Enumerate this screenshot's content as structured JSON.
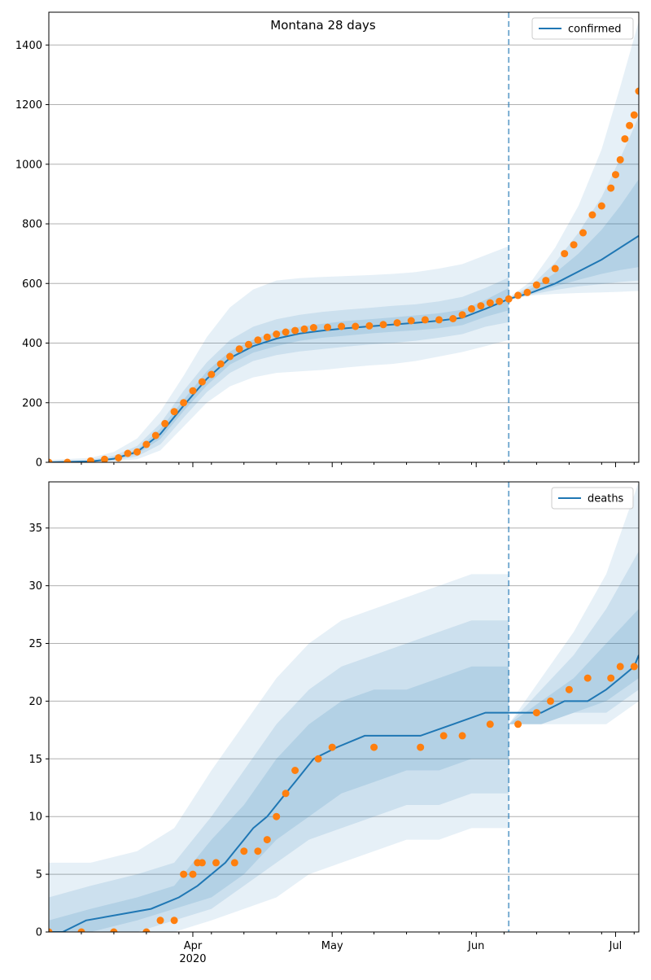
{
  "chart_data": [
    {
      "type": "line",
      "panel": "confirmed",
      "title": "Montana 28 days",
      "xlabel": "",
      "ylabel": "",
      "xlim": [
        "2020-03-01",
        "2020-07-06"
      ],
      "ylim": [
        0,
        1510
      ],
      "yticks": [
        0,
        200,
        400,
        600,
        800,
        1000,
        1200,
        1400
      ],
      "xticks": [
        {
          "date": "2020-04-01",
          "label": "Apr",
          "sublabel": "2020"
        },
        {
          "date": "2020-05-01",
          "label": "May",
          "sublabel": ""
        },
        {
          "date": "2020-06-01",
          "label": "Jun",
          "sublabel": ""
        },
        {
          "date": "2020-07-01",
          "label": "Jul",
          "sublabel": ""
        }
      ],
      "grid": "y",
      "legend_position": "top-right",
      "legend": [
        "confirmed"
      ],
      "forecast_start": "2020-06-08",
      "colors": {
        "line": "#1f77b4",
        "points": "#ff7f0e",
        "band": "#1f77b4",
        "vline": "#1f77b4"
      },
      "fit_series": {
        "name": "confirmed",
        "x": [
          "2020-03-01",
          "2020-03-10",
          "2020-03-15",
          "2020-03-20",
          "2020-03-25",
          "2020-03-30",
          "2020-04-04",
          "2020-04-09",
          "2020-04-14",
          "2020-04-19",
          "2020-04-24",
          "2020-04-29",
          "2020-05-04",
          "2020-05-09",
          "2020-05-14",
          "2020-05-19",
          "2020-05-24",
          "2020-05-29",
          "2020-06-03",
          "2020-06-08",
          "2020-06-13",
          "2020-06-18",
          "2020-06-23",
          "2020-06-28",
          "2020-07-02",
          "2020-07-06"
        ],
        "y": [
          0,
          3,
          12,
          35,
          95,
          190,
          280,
          350,
          390,
          415,
          432,
          442,
          450,
          456,
          462,
          468,
          475,
          485,
          515,
          548,
          570,
          600,
          640,
          680,
          720,
          760
        ]
      },
      "bands": [
        {
          "level": "outer",
          "x": [
            "2020-03-01",
            "2020-03-10",
            "2020-03-15",
            "2020-03-20",
            "2020-03-25",
            "2020-03-30",
            "2020-04-04",
            "2020-04-09",
            "2020-04-14",
            "2020-04-19",
            "2020-04-24",
            "2020-04-29",
            "2020-05-04",
            "2020-05-09",
            "2020-05-14",
            "2020-05-19",
            "2020-05-24",
            "2020-05-29",
            "2020-06-03",
            "2020-06-08"
          ],
          "low": [
            0,
            0,
            3,
            10,
            40,
            120,
            200,
            255,
            285,
            300,
            305,
            310,
            318,
            325,
            330,
            340,
            355,
            370,
            390,
            410
          ],
          "high": [
            8,
            15,
            35,
            80,
            170,
            290,
            420,
            520,
            580,
            610,
            618,
            622,
            625,
            628,
            632,
            638,
            650,
            665,
            695,
            725
          ]
        },
        {
          "level": "middle",
          "x": [
            "2020-03-01",
            "2020-03-10",
            "2020-03-15",
            "2020-03-20",
            "2020-03-25",
            "2020-03-30",
            "2020-04-04",
            "2020-04-09",
            "2020-04-14",
            "2020-04-19",
            "2020-04-24",
            "2020-04-29",
            "2020-05-04",
            "2020-05-09",
            "2020-05-14",
            "2020-05-19",
            "2020-05-24",
            "2020-05-29",
            "2020-06-03",
            "2020-06-08"
          ],
          "low": [
            0,
            1,
            6,
            20,
            60,
            150,
            235,
            300,
            340,
            360,
            372,
            380,
            388,
            395,
            400,
            408,
            418,
            430,
            455,
            470
          ],
          "high": [
            5,
            9,
            22,
            55,
            130,
            240,
            335,
            410,
            455,
            480,
            495,
            505,
            512,
            518,
            525,
            530,
            540,
            555,
            585,
            620
          ]
        },
        {
          "level": "inner",
          "x": [
            "2020-03-01",
            "2020-03-10",
            "2020-03-15",
            "2020-03-20",
            "2020-03-25",
            "2020-03-30",
            "2020-04-04",
            "2020-04-09",
            "2020-04-14",
            "2020-04-19",
            "2020-04-24",
            "2020-04-29",
            "2020-05-04",
            "2020-05-09",
            "2020-05-14",
            "2020-05-19",
            "2020-05-24",
            "2020-05-29",
            "2020-06-03",
            "2020-06-08"
          ],
          "low": [
            0,
            2,
            9,
            28,
            78,
            172,
            258,
            328,
            368,
            390,
            408,
            418,
            425,
            432,
            438,
            443,
            450,
            460,
            488,
            510
          ],
          "high": [
            2,
            5,
            16,
            42,
            112,
            210,
            305,
            372,
            412,
            438,
            455,
            465,
            474,
            480,
            486,
            493,
            500,
            512,
            545,
            585
          ]
        },
        {
          "level": "outer",
          "x": [
            "2020-06-08",
            "2020-06-13",
            "2020-06-18",
            "2020-06-23",
            "2020-06-28",
            "2020-07-02",
            "2020-07-06"
          ],
          "low": [
            545,
            560,
            565,
            568,
            570,
            572,
            575
          ],
          "high": [
            552,
            610,
            720,
            860,
            1050,
            1260,
            1480
          ]
        },
        {
          "level": "middle",
          "x": [
            "2020-06-08",
            "2020-06-13",
            "2020-06-18",
            "2020-06-23",
            "2020-06-28",
            "2020-07-02",
            "2020-07-06"
          ],
          "low": [
            546,
            563,
            578,
            590,
            598,
            605,
            610
          ],
          "high": [
            551,
            595,
            670,
            770,
            890,
            1020,
            1160
          ]
        },
        {
          "level": "inner",
          "x": [
            "2020-06-08",
            "2020-06-13",
            "2020-06-18",
            "2020-06-23",
            "2020-06-28",
            "2020-07-02",
            "2020-07-06"
          ],
          "low": [
            547,
            567,
            590,
            612,
            632,
            645,
            655
          ],
          "high": [
            550,
            585,
            635,
            700,
            780,
            860,
            950
          ]
        }
      ],
      "points": {
        "name": "observed",
        "x": [
          "2020-03-01",
          "2020-03-05",
          "2020-03-10",
          "2020-03-13",
          "2020-03-16",
          "2020-03-18",
          "2020-03-20",
          "2020-03-22",
          "2020-03-24",
          "2020-03-26",
          "2020-03-28",
          "2020-03-30",
          "2020-04-01",
          "2020-04-03",
          "2020-04-05",
          "2020-04-07",
          "2020-04-09",
          "2020-04-11",
          "2020-04-13",
          "2020-04-15",
          "2020-04-17",
          "2020-04-19",
          "2020-04-21",
          "2020-04-23",
          "2020-04-25",
          "2020-04-27",
          "2020-04-30",
          "2020-05-03",
          "2020-05-06",
          "2020-05-09",
          "2020-05-12",
          "2020-05-15",
          "2020-05-18",
          "2020-05-21",
          "2020-05-24",
          "2020-05-27",
          "2020-05-29",
          "2020-05-31",
          "2020-06-02",
          "2020-06-04",
          "2020-06-06",
          "2020-06-08",
          "2020-06-10",
          "2020-06-12",
          "2020-06-14",
          "2020-06-16",
          "2020-06-18",
          "2020-06-20",
          "2020-06-22",
          "2020-06-24",
          "2020-06-26",
          "2020-06-28",
          "2020-06-30",
          "2020-07-01",
          "2020-07-02",
          "2020-07-03",
          "2020-07-04",
          "2020-07-05",
          "2020-07-06"
        ],
        "y": [
          0,
          0,
          5,
          10,
          15,
          30,
          35,
          60,
          90,
          130,
          170,
          200,
          240,
          270,
          295,
          330,
          355,
          380,
          395,
          410,
          420,
          430,
          437,
          442,
          447,
          452,
          453,
          456,
          456,
          458,
          462,
          468,
          475,
          478,
          478,
          482,
          495,
          515,
          525,
          535,
          540,
          548,
          560,
          570,
          595,
          610,
          650,
          700,
          730,
          770,
          830,
          860,
          920,
          965,
          1015,
          1085,
          1130,
          1165,
          1245
        ]
      }
    },
    {
      "type": "line",
      "panel": "deaths",
      "title": "",
      "xlabel": "",
      "ylabel": "",
      "xlim": [
        "2020-03-01",
        "2020-07-06"
      ],
      "ylim": [
        0,
        39
      ],
      "yticks": [
        0,
        5,
        10,
        15,
        20,
        25,
        30,
        35
      ],
      "xticks": [
        {
          "date": "2020-04-01",
          "label": "Apr",
          "sublabel": "2020"
        },
        {
          "date": "2020-05-01",
          "label": "May",
          "sublabel": ""
        },
        {
          "date": "2020-06-01",
          "label": "Jun",
          "sublabel": ""
        },
        {
          "date": "2020-07-01",
          "label": "Jul",
          "sublabel": ""
        }
      ],
      "grid": "y",
      "legend_position": "top-right",
      "legend": [
        "deaths"
      ],
      "forecast_start": "2020-06-08",
      "colors": {
        "line": "#1f77b4",
        "points": "#ff7f0e",
        "band": "#1f77b4",
        "vline": "#1f77b4"
      },
      "fit_series": {
        "name": "deaths",
        "x": [
          "2020-03-01",
          "2020-03-04",
          "2020-03-09",
          "2020-03-23",
          "2020-03-29",
          "2020-04-02",
          "2020-04-05",
          "2020-04-08",
          "2020-04-10",
          "2020-04-12",
          "2020-04-14",
          "2020-04-17",
          "2020-04-19",
          "2020-04-21",
          "2020-04-23",
          "2020-04-25",
          "2020-04-27",
          "2020-05-02",
          "2020-05-08",
          "2020-05-20",
          "2020-05-27",
          "2020-06-03",
          "2020-06-08",
          "2020-06-15",
          "2020-06-20",
          "2020-06-25",
          "2020-06-29",
          "2020-07-02",
          "2020-07-05",
          "2020-07-06"
        ],
        "y": [
          0,
          0,
          1,
          2,
          3,
          4,
          5,
          6,
          7,
          8,
          9,
          10,
          11,
          12,
          13,
          14,
          15,
          16,
          17,
          17,
          18,
          19,
          19,
          19,
          20,
          20,
          21,
          22,
          23,
          24
        ]
      },
      "bands": [
        {
          "level": "outer",
          "x": [
            "2020-03-01",
            "2020-03-10",
            "2020-03-20",
            "2020-03-28",
            "2020-04-05",
            "2020-04-12",
            "2020-04-19",
            "2020-04-26",
            "2020-05-03",
            "2020-05-10",
            "2020-05-17",
            "2020-05-24",
            "2020-05-31",
            "2020-06-08"
          ],
          "low": [
            0,
            0,
            0,
            0,
            1,
            2,
            3,
            5,
            6,
            7,
            8,
            8,
            9,
            9
          ],
          "high": [
            6,
            6,
            7,
            9,
            14,
            18,
            22,
            25,
            27,
            28,
            29,
            30,
            31,
            31
          ]
        },
        {
          "level": "middle",
          "x": [
            "2020-03-01",
            "2020-03-10",
            "2020-03-20",
            "2020-03-28",
            "2020-04-05",
            "2020-04-12",
            "2020-04-19",
            "2020-04-26",
            "2020-05-03",
            "2020-05-10",
            "2020-05-17",
            "2020-05-24",
            "2020-05-31",
            "2020-06-08"
          ],
          "low": [
            0,
            0,
            0,
            1,
            2,
            4,
            6,
            8,
            9,
            10,
            11,
            11,
            12,
            12
          ],
          "high": [
            3,
            4,
            5,
            6,
            10,
            14,
            18,
            21,
            23,
            24,
            25,
            26,
            27,
            27
          ]
        },
        {
          "level": "inner",
          "x": [
            "2020-03-01",
            "2020-03-10",
            "2020-03-20",
            "2020-03-28",
            "2020-04-05",
            "2020-04-12",
            "2020-04-19",
            "2020-04-26",
            "2020-05-03",
            "2020-05-10",
            "2020-05-17",
            "2020-05-24",
            "2020-05-31",
            "2020-06-08"
          ],
          "low": [
            0,
            0,
            1,
            2,
            3,
            5,
            8,
            10,
            12,
            13,
            14,
            14,
            15,
            15
          ],
          "high": [
            1,
            2,
            3,
            4,
            8,
            11,
            15,
            18,
            20,
            21,
            21,
            22,
            23,
            23
          ]
        },
        {
          "level": "outer",
          "x": [
            "2020-06-08",
            "2020-06-15",
            "2020-06-22",
            "2020-06-29",
            "2020-07-06"
          ],
          "low": [
            18,
            18,
            18,
            18,
            20
          ],
          "high": [
            18,
            22,
            26,
            31,
            39
          ]
        },
        {
          "level": "middle",
          "x": [
            "2020-06-08",
            "2020-06-15",
            "2020-06-22",
            "2020-06-29",
            "2020-07-06"
          ],
          "low": [
            18,
            18,
            19,
            19,
            21
          ],
          "high": [
            18,
            21,
            24,
            28,
            33
          ]
        },
        {
          "level": "inner",
          "x": [
            "2020-06-08",
            "2020-06-15",
            "2020-06-22",
            "2020-06-29",
            "2020-07-06"
          ],
          "low": [
            18,
            18,
            19,
            20,
            22
          ],
          "high": [
            18,
            20,
            22,
            25,
            28
          ]
        }
      ],
      "points": {
        "name": "observed",
        "x": [
          "2020-03-01",
          "2020-03-08",
          "2020-03-15",
          "2020-03-22",
          "2020-03-25",
          "2020-03-28",
          "2020-03-30",
          "2020-04-01",
          "2020-04-02",
          "2020-04-03",
          "2020-04-06",
          "2020-04-10",
          "2020-04-12",
          "2020-04-15",
          "2020-04-17",
          "2020-04-19",
          "2020-04-21",
          "2020-04-23",
          "2020-04-28",
          "2020-05-01",
          "2020-05-10",
          "2020-05-20",
          "2020-05-25",
          "2020-05-29",
          "2020-06-04",
          "2020-06-10",
          "2020-06-14",
          "2020-06-17",
          "2020-06-21",
          "2020-06-25",
          "2020-06-30",
          "2020-07-02",
          "2020-07-05"
        ],
        "y": [
          0,
          0,
          0,
          0,
          1,
          1,
          5,
          5,
          6,
          6,
          6,
          6,
          7,
          7,
          8,
          10,
          12,
          14,
          15,
          16,
          16,
          16,
          17,
          17,
          18,
          18,
          19,
          20,
          21,
          22,
          22,
          23,
          23
        ]
      }
    }
  ]
}
